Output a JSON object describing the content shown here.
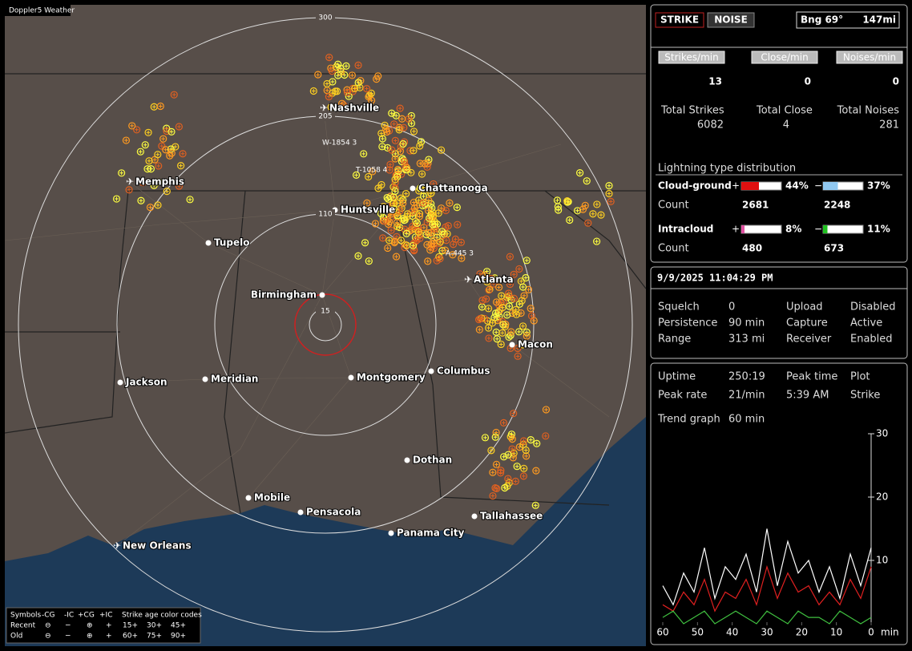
{
  "map": {
    "title": "Doppler5 Weather",
    "ring_labels": [
      "300",
      "205",
      "110",
      "15"
    ],
    "strike_labels": [
      "W-1854  3",
      "T-1058  4",
      "A-445  3"
    ],
    "cities": [
      "Nashville",
      "Memphis",
      "Chattanooga",
      "Huntsville",
      "Tupelo",
      "Atlanta",
      "Birmingham",
      "Macon",
      "Jackson",
      "Meridian",
      "Montgomery",
      "Columbus",
      "Dothan",
      "Mobile",
      "Pensacola",
      "Tallahassee",
      "Panama City",
      "New Orleans"
    ]
  },
  "legend": {
    "symbols": "Symbols",
    "types": [
      "-CG",
      "-IC",
      "+CG",
      "+IC"
    ],
    "age_title": "Strike age color codes",
    "rows": [
      "Recent",
      "Old"
    ],
    "ages": [
      [
        "15+",
        "30+",
        "45+"
      ],
      [
        "60+",
        "75+",
        "90+"
      ]
    ]
  },
  "status": {
    "modes": [
      "STRIKE",
      "NOISE"
    ],
    "bearing": "Bng 69°",
    "distance": "147mi"
  },
  "rates": {
    "headers": [
      "Strikes/min",
      "Close/min",
      "Noises/min"
    ],
    "values": [
      13,
      0,
      0
    ],
    "total_labels": [
      "Total Strikes",
      "Total Close",
      "Total Noises"
    ],
    "totals": [
      6082,
      4,
      281
    ]
  },
  "distribution": {
    "title": "Lightning type distribution",
    "rows": [
      {
        "name": "Cloud-ground",
        "pos_sign": "+",
        "pos": {
          "value": 44,
          "label": "44%"
        },
        "neg_sign": "−",
        "neg": {
          "value": 37,
          "label": "37%"
        },
        "count_label": "Count",
        "counts": [
          2681,
          2248
        ]
      },
      {
        "name": "Intracloud",
        "pos_sign": "+",
        "pos": {
          "value": 8,
          "label": "8%"
        },
        "neg_sign": "−",
        "neg": {
          "value": 11,
          "label": "11%"
        },
        "count_label": "Count",
        "counts": [
          480,
          673
        ]
      }
    ]
  },
  "settings": {
    "datetime": "9/9/2025 11:04:29 PM",
    "rows": [
      [
        "Squelch",
        "0",
        "Upload",
        "Disabled"
      ],
      [
        "Persistence",
        "90 min",
        "Capture",
        "Active"
      ],
      [
        "Range",
        "313 mi",
        "Receiver",
        "Enabled"
      ]
    ]
  },
  "stats": {
    "rows": [
      [
        "Uptime",
        "250:19",
        "Peak time",
        "Plot"
      ],
      [
        "Peak rate",
        "21/min",
        "5:39 AM",
        "Strike"
      ]
    ],
    "trend_label": "Trend graph",
    "trend_window": "60 min"
  },
  "chart_data": {
    "type": "line",
    "x": [
      60,
      57,
      54,
      51,
      48,
      45,
      42,
      39,
      36,
      33,
      30,
      27,
      24,
      21,
      18,
      15,
      12,
      9,
      6,
      3,
      0
    ],
    "xlim": [
      60,
      0
    ],
    "xticks": [
      60,
      50,
      40,
      30,
      20,
      10,
      0
    ],
    "x_unit": "min",
    "ylim": [
      0,
      30
    ],
    "yticks": [
      10,
      20,
      30
    ],
    "series": [
      {
        "color": "#ffffff",
        "values": [
          6,
          3,
          8,
          5,
          12,
          4,
          9,
          7,
          11,
          5,
          15,
          6,
          13,
          8,
          10,
          5,
          9,
          4,
          11,
          6,
          12
        ]
      },
      {
        "color": "#e02020",
        "values": [
          3,
          2,
          5,
          3,
          7,
          2,
          5,
          4,
          7,
          3,
          9,
          4,
          8,
          5,
          6,
          3,
          5,
          3,
          7,
          4,
          9
        ]
      },
      {
        "color": "#40c040",
        "values": [
          1,
          2,
          0,
          1,
          2,
          0,
          1,
          2,
          1,
          0,
          2,
          1,
          0,
          2,
          1,
          1,
          0,
          2,
          1,
          0,
          1
        ]
      }
    ]
  }
}
